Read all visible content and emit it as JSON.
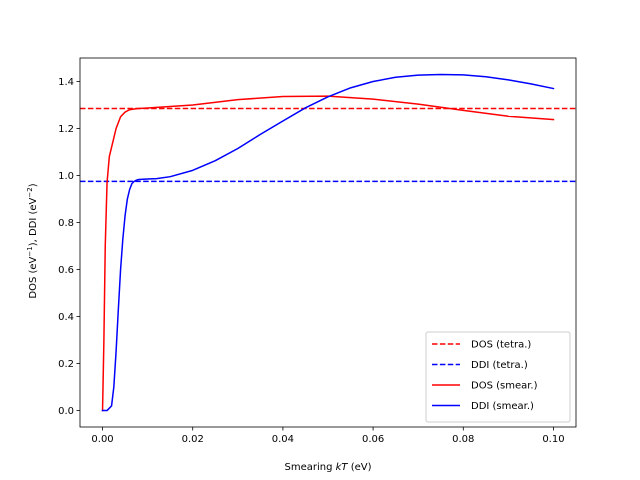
{
  "chart_data": {
    "type": "line",
    "title": "",
    "xlabel": {
      "prefix": "Smearing ",
      "italic": "kT",
      "suffix": " (eV)"
    },
    "ylabel": {
      "part1": "DOS (eV",
      "sup1": "−1",
      "part2": "), DDI (eV",
      "sup2": "−2",
      "part3": ")"
    },
    "xlim": [
      -0.005,
      0.105
    ],
    "ylim": [
      -0.07,
      1.5
    ],
    "xticks": [
      0.0,
      0.02,
      0.04,
      0.06,
      0.08,
      0.1
    ],
    "xtick_labels": [
      "0.00",
      "0.02",
      "0.04",
      "0.06",
      "0.08",
      "0.10"
    ],
    "yticks": [
      0.0,
      0.2,
      0.4,
      0.6,
      0.8,
      1.0,
      1.2,
      1.4
    ],
    "ytick_labels": [
      "0.0",
      "0.2",
      "0.4",
      "0.6",
      "0.8",
      "1.0",
      "1.2",
      "1.4"
    ],
    "grid": false,
    "legend_position": "lower-right",
    "series": [
      {
        "name": "DOS (tetra.)",
        "style": "dashed",
        "color": "#ff0000",
        "y_constant": 1.285
      },
      {
        "name": "DDI (tetra.)",
        "style": "dashed",
        "color": "#0000ff",
        "y_constant": 0.975
      },
      {
        "name": "DOS (smear.)",
        "style": "solid",
        "color": "#ff0000",
        "x": [
          0.0,
          0.0003,
          0.0006,
          0.001,
          0.0015,
          0.002,
          0.0025,
          0.003,
          0.004,
          0.005,
          0.006,
          0.007,
          0.008,
          0.01,
          0.02,
          0.03,
          0.04,
          0.05,
          0.06,
          0.07,
          0.08,
          0.09,
          0.1
        ],
        "y": [
          0.0,
          0.3,
          0.7,
          0.97,
          1.08,
          1.12,
          1.16,
          1.2,
          1.25,
          1.27,
          1.28,
          1.283,
          1.285,
          1.287,
          1.3,
          1.323,
          1.336,
          1.338,
          1.325,
          1.304,
          1.277,
          1.252,
          1.238
        ]
      },
      {
        "name": "DDI (smear.)",
        "style": "solid",
        "color": "#0000ff",
        "x": [
          0.0,
          0.001,
          0.002,
          0.0025,
          0.003,
          0.0035,
          0.004,
          0.0045,
          0.005,
          0.0055,
          0.006,
          0.0065,
          0.007,
          0.0075,
          0.008,
          0.009,
          0.01,
          0.012,
          0.015,
          0.02,
          0.025,
          0.03,
          0.035,
          0.04,
          0.045,
          0.05,
          0.055,
          0.06,
          0.065,
          0.07,
          0.075,
          0.08,
          0.085,
          0.09,
          0.095,
          0.1
        ],
        "y": [
          0.0,
          0.0,
          0.02,
          0.1,
          0.25,
          0.43,
          0.6,
          0.73,
          0.83,
          0.9,
          0.94,
          0.965,
          0.975,
          0.98,
          0.983,
          0.984,
          0.985,
          0.987,
          0.995,
          1.022,
          1.063,
          1.115,
          1.175,
          1.232,
          1.288,
          1.335,
          1.373,
          1.4,
          1.418,
          1.427,
          1.43,
          1.428,
          1.42,
          1.407,
          1.39,
          1.37
        ]
      }
    ]
  }
}
